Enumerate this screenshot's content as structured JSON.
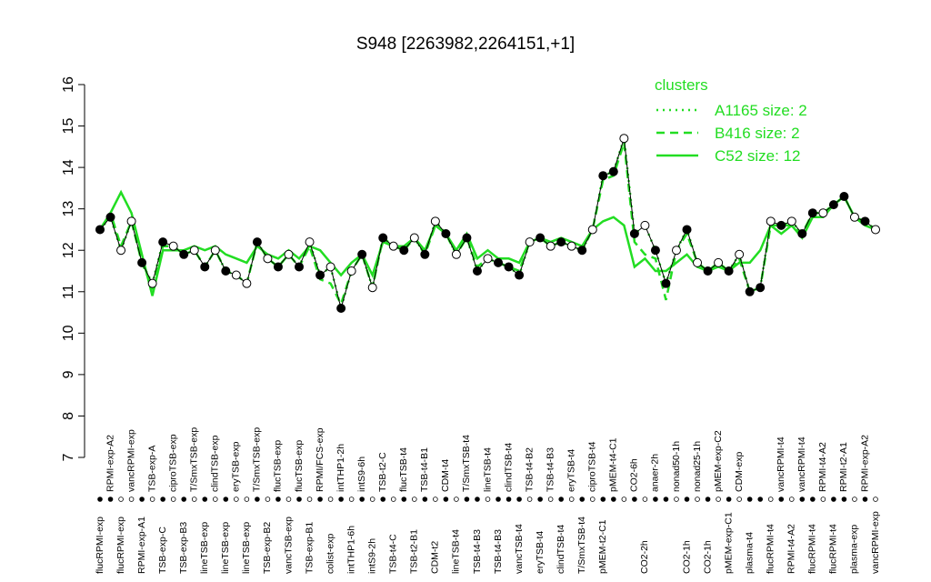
{
  "chart_data": {
    "type": "line",
    "title": "S948 [2263982,2264151,+1]",
    "ylim": [
      7,
      16
    ],
    "yticks": [
      7,
      8,
      9,
      10,
      11,
      12,
      13,
      14,
      15,
      16
    ],
    "categories": [
      "flucRPMI-exp",
      "RPMI-exp-A2",
      "flucRPMI-exp",
      "vancRPMI-exp",
      "RPMI-exp-A1",
      "TSB-exp-A",
      "TSB-exp-C",
      "ciproTSB-exp",
      "TSB-exp-B3",
      "T/SmxTSB-exp",
      "lineTSB-exp",
      "clindTSB-exp",
      "lineTSB-exp",
      "eryTSB-exp",
      "lineTSB-exp",
      "T/SmxTSB-exp",
      "TSB-exp-B2",
      "flucTSB-exp",
      "vancTSB-exp",
      "flucTSB-exp",
      "TSB-exp-B1",
      "RPMI/FCS-exp",
      "colist-exp",
      "intTHP1-2h",
      "intTHP1-6h",
      "intS9-6h",
      "intS9-2h",
      "TSB-t2-C",
      "TSB-t4-C",
      "flucTSB-t4",
      "TSB-t2-B1",
      "TSB-t4-B1",
      "CDM-t2",
      "CDM-t4",
      "lineTSB-t4",
      "T/SmxTSB-t4",
      "TSB-t4-B3",
      "lineTSB-t4",
      "TSB-t4-B3",
      "clindTSB-t4",
      "vancTSB-t4",
      "TSB-t4-B2",
      "eryTSB-t4",
      "TSB-t4-B3",
      "clindTSB-t4",
      "eryTSB-t4",
      "T/SmxTSB-t4",
      "ciproTSB-t4",
      "pMEM-t2-C1",
      "pMEM-t4-C1",
      null,
      "CO2-6h",
      "CO2-2h",
      "anaer-2h",
      null,
      "nonad50-1h",
      "CO2-1h",
      "nonad25-1h",
      "CO2-1h",
      "pMEM-exp-C2",
      "pMEM-exp-C1",
      "CDM-exp",
      "plasma-t4",
      null,
      "flucRPMI-t4",
      "vancRPMI-t4",
      "RPMI-t4-A2",
      "vancRPMI-t4",
      "flucRPMI-t4",
      "RPMI-t4-A2",
      "flucRPMI-t4",
      "RPMI-t2-A1",
      "plasma-exp",
      "RPMI-exp-A2",
      "vancRPMI-exp"
    ],
    "values": [
      12.5,
      12.8,
      12.0,
      12.7,
      11.7,
      11.2,
      12.2,
      12.1,
      11.9,
      12.0,
      11.6,
      12.0,
      11.5,
      11.4,
      11.2,
      12.2,
      11.8,
      11.6,
      11.9,
      11.6,
      12.2,
      11.4,
      11.6,
      10.6,
      11.5,
      11.9,
      11.1,
      12.3,
      12.1,
      12.0,
      12.3,
      11.9,
      12.7,
      12.4,
      11.9,
      12.3,
      11.5,
      11.8,
      11.7,
      11.6,
      11.4,
      12.2,
      12.3,
      12.1,
      12.2,
      12.1,
      12.0,
      12.5,
      13.8,
      13.9,
      14.7,
      12.4,
      12.6,
      12.0,
      11.2,
      12.0,
      12.5,
      11.7,
      11.5,
      11.7,
      11.5,
      11.9,
      11.0,
      11.1,
      12.7,
      12.6,
      12.7,
      12.4,
      12.9,
      12.9,
      13.1,
      13.3,
      12.8,
      12.7,
      12.5
    ],
    "filled": [
      true,
      true,
      false,
      false,
      true,
      false,
      true,
      false,
      true,
      false,
      true,
      false,
      true,
      false,
      false,
      true,
      false,
      true,
      false,
      true,
      false,
      true,
      false,
      true,
      false,
      true,
      false,
      true,
      false,
      true,
      false,
      true,
      false,
      true,
      false,
      true,
      true,
      false,
      true,
      true,
      true,
      false,
      true,
      false,
      true,
      false,
      true,
      false,
      true,
      true,
      false,
      true,
      false,
      true,
      true,
      false,
      true,
      false,
      true,
      false,
      true,
      false,
      true,
      true,
      false,
      true,
      false,
      true,
      true,
      false,
      true,
      true,
      false,
      true,
      false
    ],
    "legend_title": "clusters",
    "series": [
      {
        "name": "A1165 size: 2",
        "color": "#22dd22",
        "dash": "dotted",
        "values": [
          12.5,
          12.8,
          12.0,
          12.7,
          11.7,
          11.2,
          12.2,
          12.1,
          11.9,
          12.0,
          11.6,
          12.0,
          11.5,
          11.4,
          11.2,
          12.2,
          11.8,
          11.6,
          11.9,
          11.6,
          12.2,
          11.4,
          11.6,
          10.6,
          11.5,
          11.9,
          11.1,
          12.3,
          12.1,
          12.0,
          12.3,
          11.9,
          12.7,
          12.4,
          11.9,
          12.3,
          11.5,
          11.8,
          11.7,
          11.6,
          11.4,
          12.2,
          12.3,
          12.1,
          12.2,
          12.1,
          12.0,
          12.5,
          13.8,
          13.9,
          14.7,
          12.4,
          12.6,
          12.0,
          11.2,
          12.0,
          12.5,
          11.7,
          11.5,
          11.7,
          11.5,
          11.9,
          11.0,
          11.1,
          12.7,
          12.6,
          12.7,
          12.4,
          12.9,
          12.9,
          13.1,
          13.3,
          12.8,
          12.7,
          12.5
        ]
      },
      {
        "name": "B416 size: 2",
        "color": "#22dd22",
        "dash": "dashed",
        "values": [
          12.5,
          12.9,
          12.1,
          12.7,
          11.7,
          11.1,
          12.1,
          12.1,
          11.9,
          12.0,
          11.6,
          12.0,
          11.5,
          11.4,
          11.2,
          12.2,
          11.8,
          11.6,
          11.9,
          11.6,
          12.1,
          11.3,
          11.2,
          10.7,
          11.5,
          11.9,
          11.1,
          12.3,
          12.1,
          12.0,
          12.3,
          11.9,
          12.6,
          12.4,
          11.9,
          12.3,
          11.6,
          11.8,
          11.7,
          11.6,
          11.5,
          12.2,
          12.3,
          12.1,
          12.2,
          12.1,
          12.0,
          12.5,
          13.7,
          13.8,
          14.6,
          12.2,
          11.9,
          11.8,
          10.8,
          12.0,
          12.4,
          11.7,
          11.5,
          11.7,
          11.5,
          11.8,
          11.0,
          11.1,
          12.6,
          12.6,
          12.6,
          12.4,
          12.9,
          12.9,
          13.1,
          13.3,
          12.8,
          12.7,
          12.5
        ]
      },
      {
        "name": "C52 size: 12",
        "color": "#22dd22",
        "dash": "solid",
        "values": [
          12.5,
          12.9,
          13.4,
          12.9,
          11.9,
          10.9,
          12.0,
          12.0,
          12.0,
          12.1,
          12.0,
          12.1,
          11.9,
          11.8,
          11.7,
          12.1,
          11.9,
          11.8,
          12.0,
          11.8,
          12.1,
          12.0,
          11.7,
          11.4,
          11.7,
          11.9,
          11.4,
          12.2,
          12.1,
          12.1,
          12.3,
          12.0,
          12.6,
          12.4,
          12.0,
          12.4,
          11.8,
          12.0,
          11.8,
          11.8,
          11.7,
          12.2,
          12.3,
          12.2,
          12.3,
          12.2,
          12.1,
          12.5,
          12.7,
          12.8,
          12.6,
          11.6,
          11.8,
          11.5,
          11.5,
          11.7,
          11.9,
          11.6,
          11.5,
          11.6,
          11.5,
          11.7,
          11.7,
          12.0,
          12.6,
          12.4,
          12.6,
          12.3,
          12.8,
          12.8,
          13.1,
          13.3,
          12.8,
          12.6,
          12.5
        ]
      }
    ]
  }
}
